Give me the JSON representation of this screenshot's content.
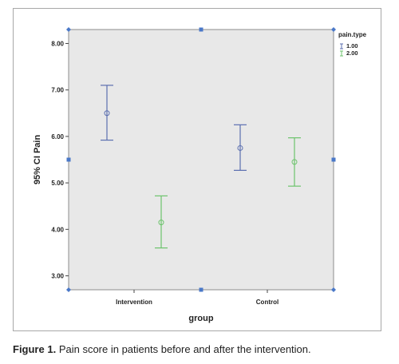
{
  "caption": {
    "label": "Figure 1.",
    "text": "Pain score in patients before and after the intervention."
  },
  "chart_data": {
    "type": "scatter",
    "subtype": "error-bar",
    "xlabel": "group",
    "ylabel": "95% CI Pain",
    "categories": [
      "Intervention",
      "Control"
    ],
    "ylim": [
      2.7,
      8.3
    ],
    "yticks": [
      "3.00",
      "4.00",
      "5.00",
      "6.00",
      "7.00",
      "8.00"
    ],
    "legend": {
      "title": "pain.type",
      "position": "top-right"
    },
    "series": [
      {
        "name": "1.00",
        "color": "#5b6fb0",
        "points": [
          {
            "category": "Intervention",
            "mean": 6.5,
            "lower": 5.92,
            "upper": 7.1
          },
          {
            "category": "Control",
            "mean": 5.75,
            "lower": 5.27,
            "upper": 6.25
          }
        ]
      },
      {
        "name": "2.00",
        "color": "#6cc36c",
        "points": [
          {
            "category": "Intervention",
            "mean": 4.15,
            "lower": 3.6,
            "upper": 4.72
          },
          {
            "category": "Control",
            "mean": 5.45,
            "lower": 4.93,
            "upper": 5.97
          }
        ]
      }
    ],
    "plot_background": "#e8e8e8",
    "grid": false
  }
}
